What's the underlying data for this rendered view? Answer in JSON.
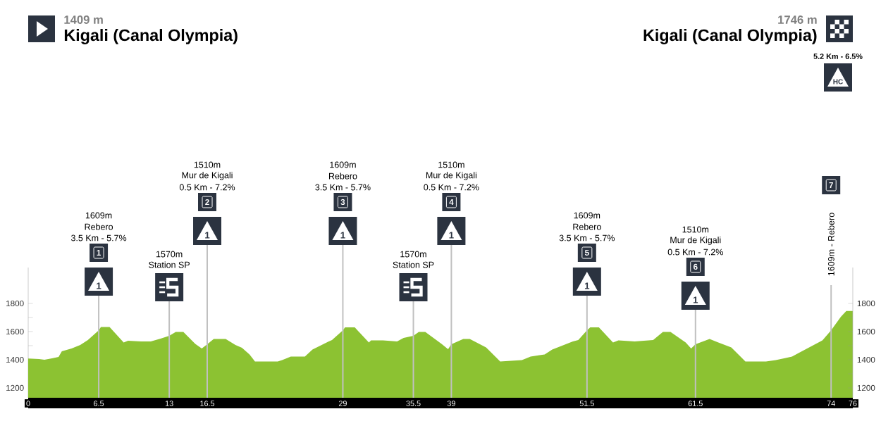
{
  "chart_data": {
    "type": "area",
    "title": "Kigali (Canal Olympia)",
    "color": "#8cc232",
    "x": [
      0,
      1.0,
      1.5,
      2.2,
      2.8,
      3.1,
      4.0,
      4.8,
      5.5,
      6.5,
      6.7,
      7.5,
      8.8,
      9.2,
      10.4,
      11.3,
      12.2,
      13,
      13.6,
      14.3,
      15.4,
      16.0,
      16.5,
      17.1,
      18.2,
      19.1,
      19.7,
      20.4,
      20.9,
      23.0,
      23.4,
      24.2,
      25.5,
      26.2,
      27.7,
      28.0,
      29,
      29.2,
      30.1,
      31.4,
      31.6,
      32.7,
      34.0,
      34.6,
      35.5,
      36.0,
      36.6,
      38.1,
      38.7,
      39,
      40.1,
      40.7,
      42.2,
      43.5,
      45.5,
      46.3,
      47.6,
      48.3,
      50.2,
      50.7,
      51.5,
      51.8,
      52.6,
      53.9,
      54.4,
      55.9,
      57.6,
      58.5,
      59.2,
      60.6,
      61.1,
      61.5,
      62.8,
      64.8,
      66.1,
      68.0,
      68.9,
      70.4,
      71.0,
      73.2,
      74,
      74.9,
      75.4,
      76
    ],
    "values": [
      1409,
      1405,
      1400,
      1410,
      1420,
      1460,
      1480,
      1505,
      1540,
      1609,
      1633,
      1633,
      1522,
      1535,
      1530,
      1530,
      1550,
      1570,
      1597,
      1597,
      1513,
      1480,
      1510,
      1547,
      1547,
      1505,
      1485,
      1438,
      1388,
      1388,
      1397,
      1422,
      1422,
      1472,
      1530,
      1540,
      1609,
      1630,
      1630,
      1522,
      1538,
      1538,
      1530,
      1555,
      1570,
      1597,
      1597,
      1513,
      1475,
      1510,
      1547,
      1547,
      1488,
      1388,
      1397,
      1422,
      1438,
      1472,
      1530,
      1540,
      1609,
      1630,
      1630,
      1522,
      1538,
      1530,
      1540,
      1597,
      1597,
      1522,
      1480,
      1510,
      1547,
      1488,
      1388,
      1388,
      1397,
      1422,
      1447,
      1538,
      1609,
      1705,
      1746,
      1746
    ],
    "xlim": [
      0,
      76
    ],
    "ylim": [
      1130,
      2055
    ],
    "xticks": [
      0,
      6.5,
      13,
      16.5,
      29,
      35.5,
      39,
      51.5,
      61.5,
      74,
      76
    ],
    "yticks": [
      1200,
      {
        "value": 1300,
        "label": null
      },
      1400,
      {
        "value": 1500,
        "label": null
      },
      1600,
      {
        "value": 1700,
        "label": null
      },
      1800
    ],
    "y2lim": [
      1130,
      2055
    ],
    "y2ticks": [
      1200,
      {
        "value": 1300,
        "label": null
      },
      1400,
      {
        "value": 1500,
        "label": null
      },
      1600,
      {
        "value": 1700,
        "label": null
      },
      1800
    ],
    "ref_lines": [
      {
        "axis": "x",
        "value": 6.5,
        "color": "#c0c0c0"
      },
      {
        "axis": "x",
        "value": 13,
        "color": "#c0c0c0"
      },
      {
        "axis": "x",
        "value": 16.5,
        "color": "#c0c0c0"
      },
      {
        "axis": "x",
        "value": 29,
        "color": "#c0c0c0"
      },
      {
        "axis": "x",
        "value": 35.5,
        "color": "#c0c0c0"
      },
      {
        "axis": "x",
        "value": 39,
        "color": "#c0c0c0"
      },
      {
        "axis": "x",
        "value": 51.5,
        "color": "#c0c0c0"
      },
      {
        "axis": "x",
        "value": 61.5,
        "color": "#c0c0c0"
      },
      {
        "axis": "x",
        "value": 74,
        "color": "#c0c0c0"
      }
    ],
    "annotations": [
      "1409 m",
      "1746 m",
      "Kigali (Canal Olympia)",
      "1609m",
      "Rebero",
      "3.5 Km - 5.7%",
      "1",
      "1",
      "1570m",
      "Station SP",
      "1510m",
      "Mur de Kigali",
      "0.5 Km - 7.2%",
      "2",
      "1",
      "1609m",
      "Rebero",
      "3.5 Km - 5.7%",
      "3",
      "1",
      "1570m",
      "Station SP",
      "1510m",
      "Mur de Kigali",
      "0.5 Km - 7.2%",
      "4",
      "1",
      "1609m",
      "Rebero",
      "3.5 Km - 5.7%",
      "5",
      "1",
      "1510m",
      "Mur de Kigali",
      "0.5 Km - 7.2%",
      "6",
      "1",
      "1609m - Rebero",
      "7",
      "5.2 Km - 6.5%",
      "HC"
    ]
  }
}
